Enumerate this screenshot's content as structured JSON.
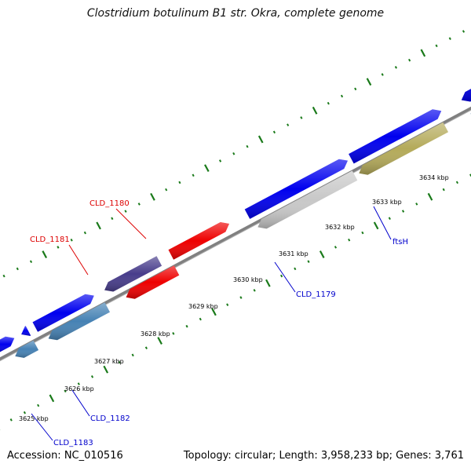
{
  "title": "Clostridium botulinum B1 str. Okra, complete genome",
  "footer": {
    "accession": "Accession: NC_010516",
    "summary": "Topology: circular; Length: 3,958,233 bp; Genes: 3,761"
  },
  "colors": {
    "forward_cds": "#0000ee",
    "reverse_cds": "#4682b4",
    "highlight_red": "#ee0000",
    "dark_purple": "#483d8b",
    "gray_cds": "#c8c8c8",
    "khaki_cds": "#b4aa5a",
    "backbone": "#808080",
    "ticks": "#1a7a1a",
    "label_red": "#dd0000",
    "label_blue": "#0000cc"
  },
  "scale_labels": [
    "3625 kbp",
    "3626 kbp",
    "3627 kbp",
    "3628 kbp",
    "3629 kbp",
    "3630 kbp",
    "3631 kbp",
    "3632 kbp",
    "3633 kbp",
    "3634 kbp"
  ],
  "gene_labels": [
    {
      "text": "CLD_1180",
      "color": "label_red"
    },
    {
      "text": "CLD_1181",
      "color": "label_red"
    },
    {
      "text": "CLD_1179",
      "color": "label_blue"
    },
    {
      "text": "ftsH",
      "color": "label_blue"
    },
    {
      "text": "CLD_1182",
      "color": "label_blue"
    },
    {
      "text": "CLD_1183",
      "color": "label_blue"
    }
  ]
}
